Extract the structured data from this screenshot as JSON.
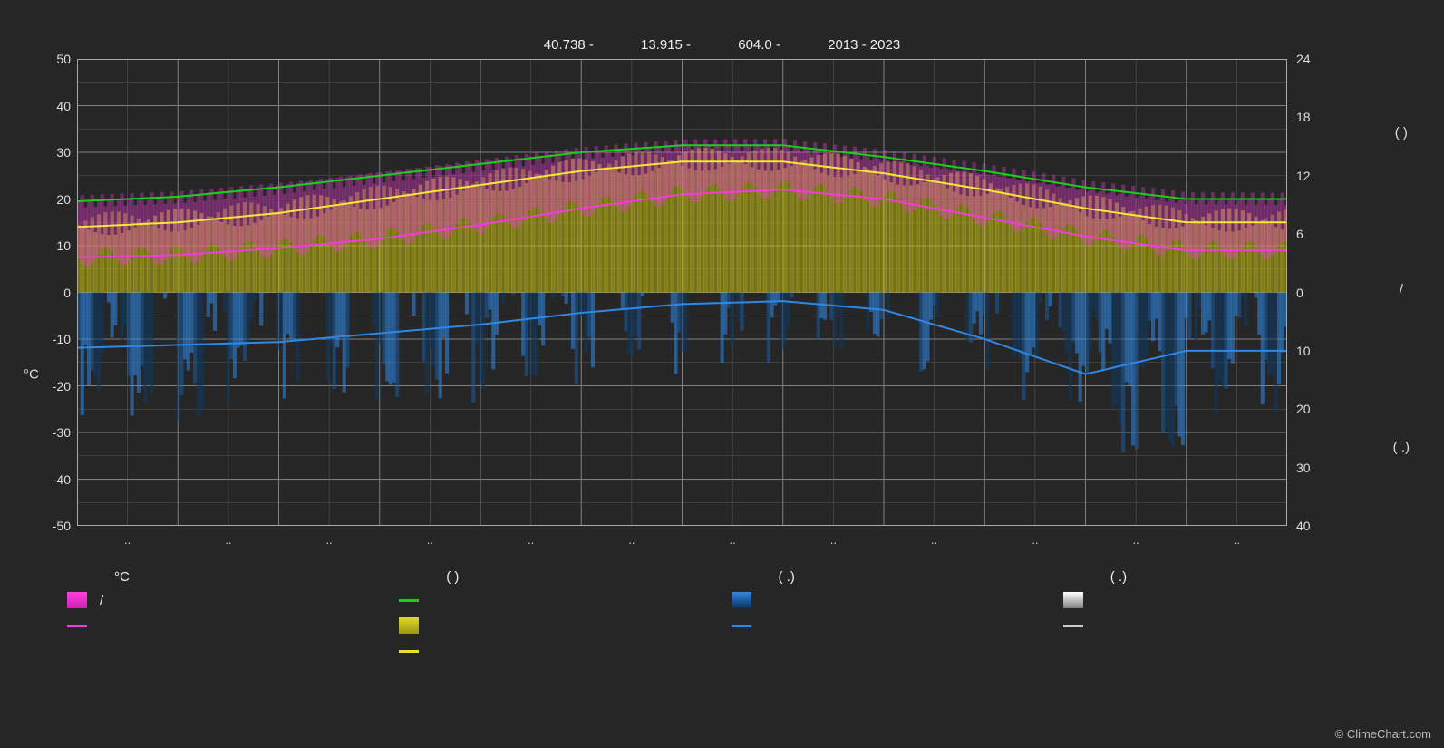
{
  "meta": {
    "latitude_label": "40.738 -",
    "longitude_label": "13.915 -",
    "elevation_label": "604.0 -",
    "years_label": "2013 - 2023"
  },
  "brand": {
    "text": "ClimeChart.com"
  },
  "copyright": "© ClimeChart.com",
  "chart": {
    "background_color": "#262626",
    "plot_bg": "#262626",
    "grid_color": "#808080",
    "grid_minor_color": "#555555",
    "left_axis": {
      "label": "°C",
      "min": -50,
      "max": 50,
      "step": 10,
      "ticks": [
        50,
        40,
        30,
        20,
        10,
        0,
        -10,
        -20,
        -30,
        -40,
        -50
      ]
    },
    "right_axis": {
      "top_half_ticks": [
        24,
        18,
        12,
        6,
        0
      ],
      "bottom_half_ticks": [
        10,
        20,
        30,
        40
      ],
      "unit_top": "(      )",
      "unit_bottom_a": "/",
      "unit_bottom_b": "(  .)"
    },
    "x_axis": {
      "months": [
        "..",
        "..",
        "..",
        "..",
        "..",
        "..",
        "..",
        "..",
        "..",
        "..",
        "..",
        ".."
      ],
      "divisions": 12
    },
    "series": {
      "max_temp_line": {
        "color": "#1ad01a",
        "width": 2,
        "values": [
          19.5,
          20.5,
          22.5,
          25,
          27.5,
          30,
          31.5,
          31.5,
          29,
          26,
          22.5,
          20
        ]
      },
      "day_temp_line": {
        "color": "#f2e83a",
        "width": 2,
        "values": [
          14,
          15,
          17,
          20,
          23,
          26,
          28,
          28,
          25.5,
          22,
          18,
          15
        ]
      },
      "min_temp_line": {
        "color": "#ee3ed6",
        "width": 2,
        "values": [
          7.5,
          8,
          9.5,
          11.5,
          14.5,
          18,
          21,
          22,
          20,
          16,
          12,
          9
        ]
      },
      "precip_line": {
        "color": "#2e88e6",
        "width": 2,
        "values_mm": [
          9.5,
          9,
          8.5,
          7,
          5.5,
          3.5,
          2,
          1.5,
          3,
          8,
          14,
          10
        ]
      },
      "precip_band": {
        "colors": [
          "#0f3a65",
          "#1c5da0",
          "#2e88e6"
        ],
        "opacity": 0.55,
        "max_depth": 20
      },
      "sun_band": {
        "colors": [
          "#b5ad15",
          "#d0c81a"
        ],
        "opacity": 0.55
      },
      "minmax_band": {
        "color": "#ee3ed6",
        "opacity": 0.35
      }
    }
  },
  "legend": {
    "cols": [
      {
        "header": "°C",
        "items": [
          {
            "swatch_type": "box",
            "swatch_color": "linear-gradient(#ff40e0,#d020b0)",
            "label": "/"
          },
          {
            "swatch_type": "line",
            "swatch_color": "#ee3ed6",
            "label": ""
          }
        ]
      },
      {
        "header": "         (            )",
        "items": [
          {
            "swatch_type": "line",
            "swatch_color": "#1ad01a",
            "label": ""
          },
          {
            "swatch_type": "box",
            "swatch_color": "linear-gradient(#e0d830,#9c9512)",
            "label": ""
          },
          {
            "swatch_type": "line",
            "swatch_color": "#e8df30",
            "label": ""
          }
        ]
      },
      {
        "header": "(   .)",
        "items": [
          {
            "swatch_type": "box",
            "swatch_color": "linear-gradient(#2e88e6,#0d3355)",
            "label": ""
          },
          {
            "swatch_type": "line",
            "swatch_color": "#2e88e6",
            "label": ""
          }
        ]
      },
      {
        "header": "(   .)",
        "items": [
          {
            "swatch_type": "box",
            "swatch_color": "linear-gradient(#ffffff,#808080)",
            "label": ""
          },
          {
            "swatch_type": "line",
            "swatch_color": "#cccccc",
            "label": ""
          }
        ]
      }
    ]
  }
}
